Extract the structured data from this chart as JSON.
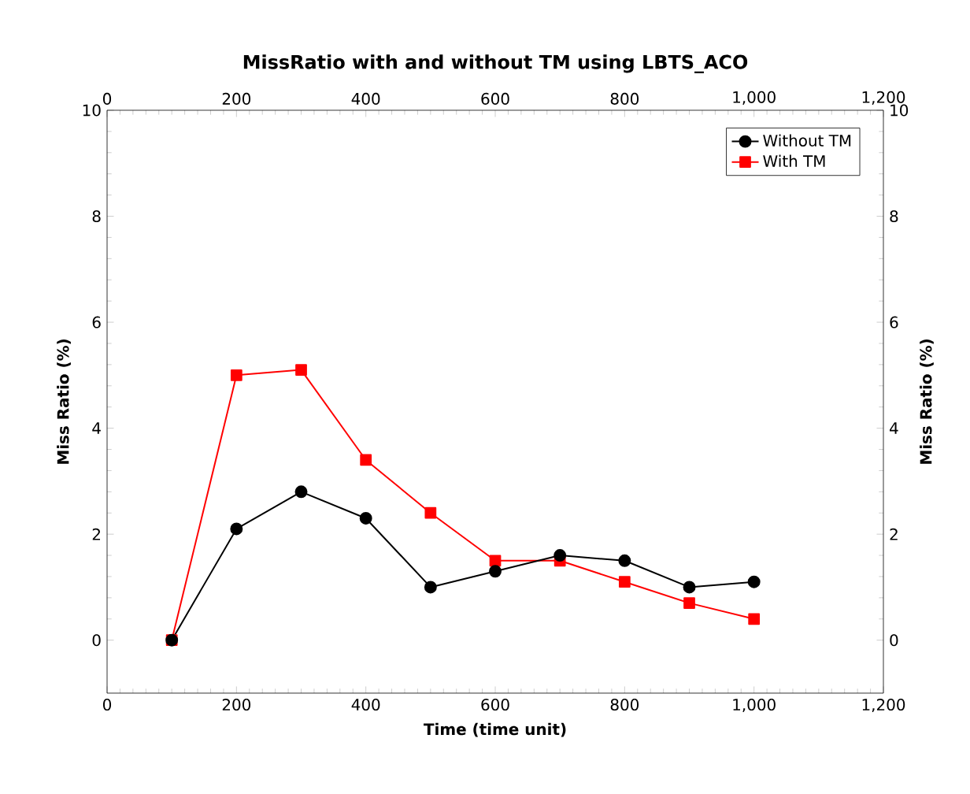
{
  "chart_data": {
    "type": "line",
    "title": "MissRatio with and without TM using LBTS_ACO",
    "xlabel": "Time (time unit)",
    "ylabel": "Miss Ratio (%)",
    "y2label": "Miss Ratio (%)",
    "x": [
      100,
      200,
      300,
      400,
      500,
      600,
      700,
      800,
      900,
      1000
    ],
    "series": [
      {
        "name": "Without TM",
        "color": "#000000",
        "marker": "circle",
        "values": [
          0,
          2.1,
          2.8,
          2.3,
          1.0,
          1.3,
          1.6,
          1.5,
          1.0,
          1.1
        ]
      },
      {
        "name": "With TM",
        "color": "#ff0000",
        "marker": "square",
        "values": [
          0,
          5.0,
          5.1,
          3.4,
          2.4,
          1.5,
          1.5,
          1.1,
          0.7,
          0.4
        ]
      }
    ],
    "xlim": [
      0,
      1200
    ],
    "xticks": [
      0,
      200,
      400,
      600,
      800,
      {
        "value": 1000,
        "label": "1,000"
      },
      {
        "value": 1200,
        "label": "1,200"
      }
    ],
    "x2lim": [
      0,
      1200
    ],
    "x2ticks": [
      0,
      200,
      400,
      600,
      800,
      {
        "value": 1000,
        "label": "1,000"
      },
      {
        "value": 1200,
        "label": "1,200"
      }
    ],
    "ylim": [
      -1,
      10
    ],
    "yticks": [
      0,
      2,
      4,
      6,
      8,
      10
    ],
    "y2lim": [
      -1,
      10
    ],
    "y2ticks": [
      0,
      2,
      4,
      6,
      8,
      10
    ],
    "grid": false,
    "legend": "top right",
    "line_style": "solid"
  }
}
